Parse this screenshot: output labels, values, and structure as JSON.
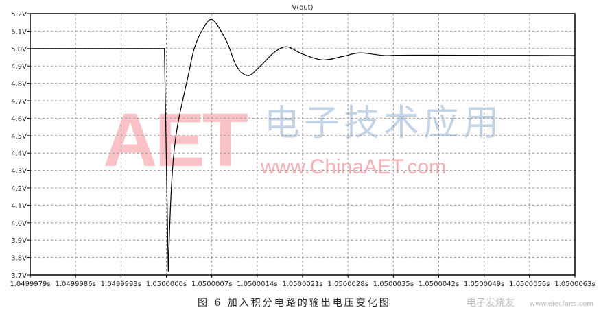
{
  "chart_data": {
    "type": "line",
    "title": "V(out)",
    "xlabel": "",
    "ylabel": "",
    "xlim": [
      1.0499979,
      1.0500063
    ],
    "ylim": [
      3.7,
      5.2
    ],
    "grid": true,
    "x_ticks": [
      "1.0499979s",
      "1.0499986s",
      "1.0499993s",
      "1.0500000s",
      "1.0500007s",
      "1.0500014s",
      "1.0500021s",
      "1.0500028s",
      "1.0500035s",
      "1.0500042s",
      "1.0500049s",
      "1.0500056s",
      "1.0500063s"
    ],
    "y_ticks": [
      "5.2V",
      "5.1V",
      "5.0V",
      "4.9V",
      "4.8V",
      "4.7V",
      "4.6V",
      "4.5V",
      "4.4V",
      "4.3V",
      "4.2V",
      "4.1V",
      "4.0V",
      "3.9V",
      "3.8V",
      "3.7V"
    ],
    "series": [
      {
        "name": "V(out)",
        "color": "#000000",
        "x": [
          1.0499979,
          1.04999997,
          1.05000003,
          1.05000008,
          1.05000016,
          1.05000034,
          1.05000043,
          1.05000056,
          1.05000071,
          1.05000093,
          1.05000108,
          1.05000126,
          1.05000145,
          1.05000167,
          1.05000186,
          1.05000209,
          1.05000241,
          1.05000272,
          1.05000299,
          1.05000336,
          1.05000378,
          1.0500063
        ],
        "y": [
          5.0,
          5.0,
          3.72,
          4.22,
          4.53,
          4.85,
          5.0,
          5.11,
          5.165,
          5.04,
          4.9,
          4.845,
          4.9,
          4.98,
          5.01,
          4.97,
          4.935,
          4.955,
          4.975,
          4.96,
          4.962,
          4.96
        ]
      }
    ]
  },
  "caption": "图 6  加入积分电路的输出电压变化图",
  "watermark": {
    "logo": "AET",
    "site": "www.ChinaAET.com",
    "cn": "电子技术应用",
    "elecfans_cn": "电子发烧友",
    "elecfans": "www.elecfans.com"
  }
}
